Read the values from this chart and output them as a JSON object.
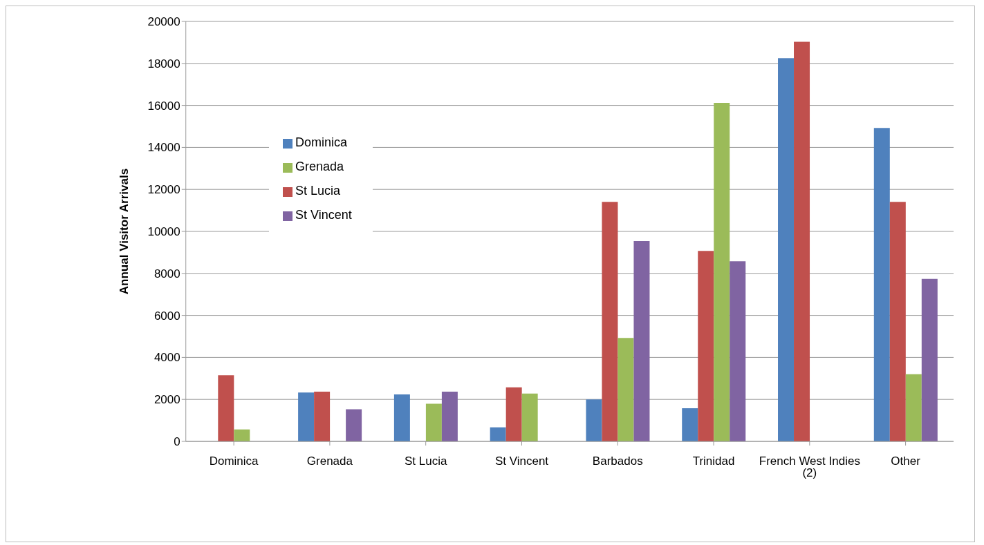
{
  "chart_data": {
    "type": "bar",
    "ylabel": "Annual Visitor Arrivals",
    "categories": [
      "Dominica",
      "Grenada",
      "St Lucia",
      "St Vincent",
      "Barbados",
      "Trinidad",
      "French West Indies (2)",
      "Other"
    ],
    "series": [
      {
        "name": "Dominica",
        "color": "#4f81bd",
        "values": [
          null,
          2330,
          2240,
          670,
          2000,
          1580,
          18250,
          14930
        ]
      },
      {
        "name": "St Lucia",
        "color": "#c0504d",
        "values": [
          3150,
          2370,
          null,
          2570,
          11410,
          9070,
          19030,
          11410
        ]
      },
      {
        "name": "Grenada",
        "color": "#9bbb59",
        "values": [
          570,
          null,
          1790,
          2280,
          4930,
          16120,
          null,
          3200
        ]
      },
      {
        "name": "St Vincent",
        "color": "#8064a2",
        "values": [
          null,
          1530,
          2370,
          null,
          9540,
          8580,
          null,
          7740
        ]
      }
    ],
    "ylim": [
      0,
      20000
    ],
    "yticks": [
      0,
      2000,
      4000,
      6000,
      8000,
      10000,
      12000,
      14000,
      16000,
      18000,
      20000
    ],
    "grid": "y",
    "legend": "top left"
  }
}
